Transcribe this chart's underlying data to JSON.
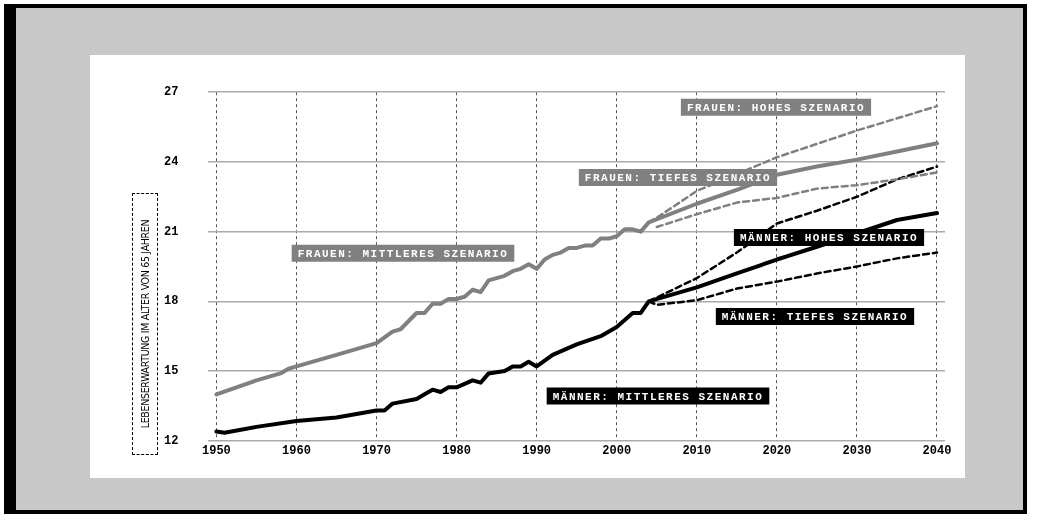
{
  "chart_data": {
    "type": "line",
    "ylabel": "LEBENSERWARTUNG IM ALTER VON 65 JAHREN",
    "xlim": [
      1949,
      2041
    ],
    "xticks": [
      1950,
      1960,
      1970,
      1980,
      1990,
      2000,
      2010,
      2020,
      2030,
      2040
    ],
    "ylim": [
      12,
      27
    ],
    "yticks": [
      12,
      15,
      18,
      21,
      24,
      27
    ],
    "grid": true,
    "legend": false,
    "marker": "none",
    "series": [
      {
        "name": "FRAUEN: MITTLERES SZENARIO",
        "color": "#808080",
        "line_style": "solid",
        "x": [
          1950,
          1955,
          1958,
          1959,
          1960,
          1965,
          1970,
          1972,
          1973,
          1975,
          1976,
          1977,
          1978,
          1979,
          1980,
          1981,
          1982,
          1983,
          1984,
          1985,
          1986,
          1987,
          1988,
          1989,
          1990,
          1991,
          1992,
          1993,
          1994,
          1995,
          1996,
          1997,
          1998,
          1999,
          2000,
          2001,
          2002,
          2003,
          2004,
          2010,
          2015,
          2020,
          2025,
          2030,
          2035,
          2040
        ],
        "values": [
          14.0,
          14.6,
          14.9,
          15.1,
          15.2,
          15.7,
          16.2,
          16.7,
          16.8,
          17.5,
          17.5,
          17.9,
          17.9,
          18.1,
          18.1,
          18.2,
          18.5,
          18.4,
          18.9,
          19.0,
          19.1,
          19.3,
          19.4,
          19.6,
          19.4,
          19.8,
          20.0,
          20.1,
          20.3,
          20.3,
          20.4,
          20.4,
          20.7,
          20.7,
          20.8,
          21.1,
          21.1,
          21.0,
          21.4,
          22.2,
          22.8,
          23.45,
          23.8,
          24.1,
          24.45,
          24.8
        ]
      },
      {
        "name": "FRAUEN: HOHES SZENARIO",
        "color": "#808080",
        "line_style": "dashed",
        "x": [
          2004,
          2005,
          2010,
          2015,
          2020,
          2030,
          2040
        ],
        "values": [
          21.4,
          21.6,
          22.75,
          null,
          24.2,
          25.35,
          26.4
        ]
      },
      {
        "name": "FRAUEN: TIEFES SZENARIO",
        "color": "#808080",
        "line_style": "dashed",
        "x": [
          2005,
          2010,
          2015,
          2020,
          2025,
          2030,
          2035,
          2040
        ],
        "values": [
          21.2,
          21.75,
          22.25,
          22.45,
          22.85,
          23.0,
          23.25,
          23.55
        ]
      },
      {
        "name": "MÄNNER: HOHES SZENARIO",
        "color": "#000000",
        "line_style": "dashed",
        "x": [
          2004,
          2010,
          2015,
          2020,
          2025,
          2030,
          2035,
          2040
        ],
        "values": [
          18.0,
          19.0,
          20.1,
          21.35,
          21.9,
          22.5,
          23.25,
          23.8
        ]
      },
      {
        "name": "MÄNNER: TIEFES SZENARIO",
        "color": "#000000",
        "line_style": "dashed",
        "x": [
          2004,
          2005,
          2010,
          2015,
          2020,
          2025,
          2030,
          2035,
          2040
        ],
        "values": [
          18.0,
          17.85,
          18.05,
          18.55,
          18.85,
          19.2,
          19.5,
          19.85,
          20.1
        ]
      },
      {
        "name": "MÄNNER: MITTLERES SZENARIO",
        "color": "#000000",
        "line_style": "solid",
        "x": [
          1950,
          1951,
          1955,
          1960,
          1965,
          1970,
          1971,
          1972,
          1975,
          1976,
          1977,
          1978,
          1979,
          1980,
          1982,
          1983,
          1984,
          1986,
          1987,
          1988,
          1989,
          1990,
          1992,
          1995,
          1998,
          2000,
          2002,
          2003,
          2004,
          2010,
          2015,
          2020,
          2025,
          2030,
          2035,
          2040
        ],
        "values": [
          12.4,
          12.35,
          12.6,
          12.85,
          13.0,
          13.3,
          13.3,
          13.6,
          13.8,
          14.0,
          14.2,
          14.1,
          14.3,
          14.3,
          14.6,
          14.5,
          14.9,
          15.0,
          15.2,
          15.2,
          15.4,
          15.2,
          15.7,
          16.15,
          16.5,
          16.9,
          17.5,
          17.5,
          18.0,
          18.6,
          19.2,
          19.8,
          20.35,
          null,
          21.5,
          21.8
        ]
      }
    ]
  }
}
